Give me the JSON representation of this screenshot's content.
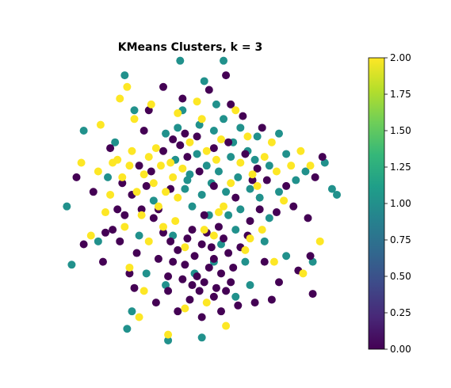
{
  "chart_data": {
    "type": "scatter",
    "title": "KMeans Clusters, k = 3",
    "xlabel": "",
    "ylabel": "",
    "axes_visible": false,
    "grid": false,
    "xlim": [
      -6.0,
      6.0
    ],
    "ylim": [
      -5.0,
      5.0
    ],
    "colorbar": {
      "range": [
        0.0,
        2.0
      ],
      "ticks": [
        "0.00",
        "0.25",
        "0.50",
        "0.75",
        "1.00",
        "1.25",
        "1.50",
        "1.75",
        "2.00"
      ],
      "colormap": "viridis",
      "colors": [
        "#440154",
        "#482878",
        "#3e4a89",
        "#31688e",
        "#26828e",
        "#1f9e89",
        "#35b779",
        "#6ece58",
        "#b5de2b",
        "#fde725"
      ]
    },
    "series": [
      {
        "cluster": 0,
        "color": "#440154",
        "points": [
          [
            0.4,
            -1.4
          ],
          [
            0.9,
            -1.9
          ],
          [
            -0.3,
            -2.1
          ],
          [
            1.2,
            -2.4
          ],
          [
            0.0,
            -2.8
          ],
          [
            0.7,
            -2.2
          ],
          [
            1.5,
            -1.7
          ],
          [
            -0.6,
            -1.6
          ],
          [
            0.2,
            -2.5
          ],
          [
            1.0,
            -2.9
          ],
          [
            -0.2,
            -1.2
          ],
          [
            0.6,
            -1.0
          ],
          [
            1.3,
            -1.2
          ],
          [
            -0.8,
            -2.0
          ],
          [
            0.3,
            -3.0
          ],
          [
            1.7,
            -2.2
          ],
          [
            -1.0,
            -2.5
          ],
          [
            0.8,
            -1.5
          ],
          [
            1.1,
            -0.8
          ],
          [
            0.1,
            -1.8
          ],
          [
            -0.4,
            -2.6
          ],
          [
            1.6,
            -2.7
          ],
          [
            0.5,
            -2.7
          ],
          [
            -0.9,
            -1.3
          ],
          [
            2.0,
            -1.5
          ],
          [
            0.9,
            -3.2
          ],
          [
            -0.1,
            -3.3
          ],
          [
            1.4,
            -3.0
          ],
          [
            0.0,
            -0.9
          ],
          [
            -1.2,
            -1.0
          ],
          [
            -1.6,
            -0.5
          ],
          [
            -2.1,
            -0.2
          ],
          [
            -2.5,
            0.3
          ],
          [
            -1.9,
            0.6
          ],
          [
            -2.8,
            -0.4
          ],
          [
            -3.0,
            -1.3
          ],
          [
            -2.3,
            -1.7
          ],
          [
            -1.7,
            1.1
          ],
          [
            -1.2,
            1.8
          ],
          [
            -0.8,
            2.2
          ],
          [
            -0.3,
            2.4
          ],
          [
            0.2,
            2.3
          ],
          [
            -0.5,
            2.0
          ],
          [
            0.9,
            1.9
          ],
          [
            1.5,
            2.1
          ],
          [
            2.2,
            1.7
          ],
          [
            2.7,
            1.2
          ],
          [
            3.1,
            0.8
          ],
          [
            2.8,
            -0.2
          ],
          [
            2.4,
            -0.6
          ],
          [
            3.5,
            -0.3
          ],
          [
            3.9,
            0.6
          ],
          [
            4.2,
            -0.1
          ],
          [
            4.8,
            -0.5
          ],
          [
            5.1,
            0.9
          ],
          [
            5.4,
            1.6
          ],
          [
            4.9,
            -1.8
          ],
          [
            5.0,
            -3.1
          ],
          [
            3.6,
            -2.7
          ],
          [
            2.6,
            -3.4
          ],
          [
            1.9,
            -3.5
          ],
          [
            1.2,
            -3.7
          ],
          [
            -1.5,
            -3.4
          ],
          [
            -2.6,
            -2.4
          ],
          [
            -3.3,
            -0.9
          ],
          [
            -3.7,
            -2.0
          ],
          [
            -4.1,
            0.4
          ],
          [
            -4.5,
            -1.4
          ],
          [
            -3.4,
            1.9
          ],
          [
            -2.0,
            2.5
          ],
          [
            -1.8,
            3.2
          ],
          [
            -0.4,
            3.6
          ],
          [
            0.7,
            3.9
          ],
          [
            1.4,
            4.4
          ],
          [
            -1.2,
            4.0
          ],
          [
            2.1,
            3.0
          ],
          [
            -4.8,
            0.9
          ],
          [
            -3.6,
            -1.0
          ],
          [
            -2.4,
            -2.9
          ],
          [
            -1.4,
            -1.9
          ],
          [
            -2.2,
            1.3
          ],
          [
            0.3,
            1.1
          ],
          [
            1.8,
            0.2
          ],
          [
            -0.9,
            0.5
          ],
          [
            0.5,
            -0.4
          ],
          [
            2.3,
            -1.1
          ],
          [
            3.0,
            -2.0
          ],
          [
            -0.6,
            -3.7
          ],
          [
            0.4,
            -3.9
          ],
          [
            2.9,
            2.6
          ],
          [
            -2.9,
            0.7
          ],
          [
            -3.1,
            -0.2
          ],
          [
            4.4,
            -2.3
          ],
          [
            3.3,
            -3.3
          ],
          [
            -1.0,
            -3.0
          ],
          [
            1.6,
            3.4
          ],
          [
            -0.2,
            1.6
          ],
          [
            0.9,
            0.6
          ],
          [
            -1.4,
            -0.2
          ],
          [
            2.5,
            0.8
          ]
        ]
      },
      {
        "cluster": 1,
        "color": "#21918c",
        "points": [
          [
            0.2,
            1.7
          ],
          [
            0.6,
            1.3
          ],
          [
            -0.1,
            1.0
          ],
          [
            0.8,
            0.7
          ],
          [
            0.4,
            0.3
          ],
          [
            1.1,
            1.1
          ],
          [
            -0.3,
            0.5
          ],
          [
            0.0,
            -0.1
          ],
          [
            0.7,
            -0.4
          ],
          [
            1.4,
            0.4
          ],
          [
            1.9,
            0.9
          ],
          [
            2.4,
            0.5
          ],
          [
            2.0,
            -0.2
          ],
          [
            2.8,
            0.2
          ],
          [
            3.2,
            1.3
          ],
          [
            3.6,
            0.4
          ],
          [
            3.9,
            1.7
          ],
          [
            4.3,
            0.8
          ],
          [
            1.6,
            1.6
          ],
          [
            2.3,
            1.8
          ],
          [
            2.7,
            2.3
          ],
          [
            0.9,
            2.5
          ],
          [
            0.3,
            2.7
          ],
          [
            -0.6,
            2.6
          ],
          [
            -1.1,
            2.4
          ],
          [
            1.3,
            2.9
          ],
          [
            2.0,
            2.6
          ],
          [
            1.0,
            3.4
          ],
          [
            -0.4,
            3.2
          ],
          [
            0.5,
            4.2
          ],
          [
            1.3,
            4.9
          ],
          [
            -0.5,
            4.9
          ],
          [
            -2.8,
            4.4
          ],
          [
            -2.4,
            3.2
          ],
          [
            -3.2,
            2.1
          ],
          [
            -4.5,
            2.5
          ],
          [
            -5.2,
            -0.1
          ],
          [
            -5.0,
            -2.1
          ],
          [
            -3.9,
            -1.3
          ],
          [
            -3.5,
            0.9
          ],
          [
            -2.2,
            -1.1
          ],
          [
            -1.9,
            -2.4
          ],
          [
            -1.1,
            -2.8
          ],
          [
            -2.5,
            -3.7
          ],
          [
            -2.7,
            -4.3
          ],
          [
            -1.0,
            -4.7
          ],
          [
            0.4,
            -4.6
          ],
          [
            1.8,
            -3.2
          ],
          [
            2.2,
            -2.0
          ],
          [
            3.0,
            -1.3
          ],
          [
            3.9,
            -1.8
          ],
          [
            5.0,
            -2.0
          ],
          [
            6.0,
            0.3
          ],
          [
            5.8,
            0.5
          ],
          [
            5.5,
            1.4
          ],
          [
            4.7,
            1.1
          ],
          [
            3.2,
            -0.5
          ],
          [
            1.8,
            -0.9
          ],
          [
            1.2,
            -1.4
          ],
          [
            0.1,
            -2.4
          ],
          [
            -0.8,
            -1.1
          ],
          [
            -1.6,
            0.1
          ],
          [
            -0.7,
            1.5
          ],
          [
            2.6,
            1.5
          ],
          [
            3.6,
            2.4
          ],
          [
            1.7,
            2.1
          ],
          [
            -0.2,
            0.8
          ],
          [
            0.9,
            -2.0
          ],
          [
            2.4,
            -2.8
          ],
          [
            1.5,
            -0.4
          ]
        ]
      },
      {
        "cluster": 2,
        "color": "#fde725",
        "points": [
          [
            -1.3,
            1.3
          ],
          [
            -0.8,
            0.9
          ],
          [
            -1.6,
            0.7
          ],
          [
            -1.1,
            0.4
          ],
          [
            -2.0,
            1.0
          ],
          [
            -0.6,
            0.2
          ],
          [
            -1.4,
            -0.1
          ],
          [
            -2.3,
            0.4
          ],
          [
            -1.8,
            1.6
          ],
          [
            -0.9,
            1.4
          ],
          [
            -1.5,
            1.9
          ],
          [
            -2.6,
            1.3
          ],
          [
            -2.9,
            0.9
          ],
          [
            -2.1,
            -0.4
          ],
          [
            -0.7,
            -0.6
          ],
          [
            -1.2,
            -0.8
          ],
          [
            -2.5,
            1.8
          ],
          [
            -3.1,
            1.5
          ],
          [
            -0.4,
            1.2
          ],
          [
            -3.4,
            0.3
          ],
          [
            -3.6,
            -0.3
          ],
          [
            -4.2,
            -1.1
          ],
          [
            -3.9,
            1.1
          ],
          [
            -3.3,
            1.4
          ],
          [
            -2.4,
            2.9
          ],
          [
            -3.0,
            3.6
          ],
          [
            -2.7,
            4.0
          ],
          [
            -1.7,
            3.4
          ],
          [
            -0.6,
            3.1
          ],
          [
            0.4,
            2.9
          ],
          [
            1.2,
            2.2
          ],
          [
            2.0,
            1.4
          ],
          [
            2.5,
            1.0
          ],
          [
            3.0,
            1.6
          ],
          [
            3.5,
            1.1
          ],
          [
            4.1,
            1.3
          ],
          [
            4.5,
            1.8
          ],
          [
            2.7,
            0.6
          ],
          [
            1.6,
            0.7
          ],
          [
            0.5,
            -0.9
          ],
          [
            1.1,
            -0.3
          ],
          [
            2.9,
            -0.9
          ],
          [
            3.4,
            -2.0
          ],
          [
            4.6,
            -2.4
          ],
          [
            5.3,
            -1.3
          ],
          [
            4.9,
            1.3
          ],
          [
            2.2,
            -1.6
          ],
          [
            1.3,
            -0.1
          ],
          [
            -0.3,
            -1.5
          ],
          [
            -1.8,
            -1.3
          ],
          [
            -2.0,
            -3.0
          ],
          [
            -2.6,
            -2.2
          ],
          [
            -2.2,
            -3.9
          ],
          [
            -1.0,
            -4.5
          ],
          [
            -0.3,
            -3.6
          ],
          [
            0.6,
            -3.4
          ],
          [
            1.4,
            -4.2
          ],
          [
            -3.8,
            2.7
          ],
          [
            0.2,
            3.5
          ],
          [
            1.8,
            3.2
          ],
          [
            2.3,
            2.3
          ],
          [
            3.3,
            2.1
          ],
          [
            0.6,
            1.8
          ],
          [
            -0.1,
            2.1
          ],
          [
            1.0,
            1.5
          ],
          [
            -4.6,
            1.4
          ],
          [
            -2.8,
            -0.8
          ],
          [
            3.8,
            0.1
          ],
          [
            2.4,
            -1.2
          ],
          [
            0.9,
            -1.1
          ]
        ]
      }
    ]
  }
}
